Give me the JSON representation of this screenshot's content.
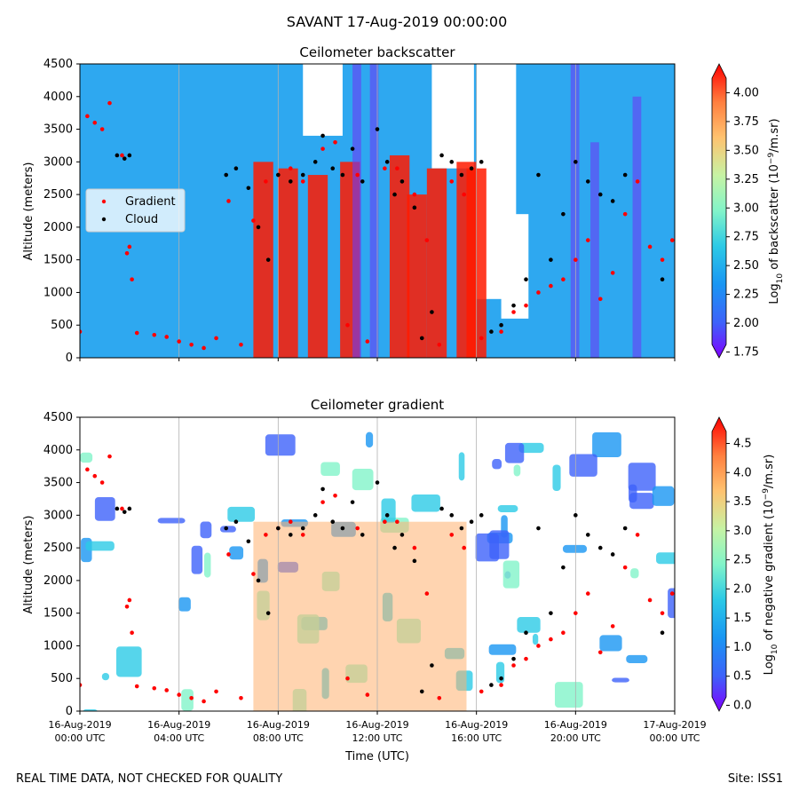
{
  "suptitle": "SAVANT 17-Aug-2019 00:00:00",
  "footer_left": "REAL TIME DATA, NOT CHECKED FOR QUALITY",
  "footer_right": "Site: ISS1",
  "colors": {
    "gradient_marker": "#ff0000",
    "cloud_marker": "#000000",
    "colormap": [
      "#7f00ff",
      "#3d62fa",
      "#1996f3",
      "#2ccae6",
      "#82f4c9",
      "#c6f3a4",
      "#ffc26f",
      "#ff7f3f",
      "#ff3d1f",
      "#ff0000"
    ]
  },
  "chart_data": [
    {
      "type": "heatmap",
      "title": "Ceilometer backscatter",
      "xlabel": "",
      "ylabel": "Altitude (meters)",
      "x_range": [
        "16-Aug-2019 00:00 UTC",
        "17-Aug-2019 00:00 UTC"
      ],
      "ylim": [
        0,
        4500
      ],
      "yticks": [
        0,
        500,
        1000,
        1500,
        2000,
        2500,
        3000,
        3500,
        4000,
        4500
      ],
      "grid": "vertical at 4-hour ticks",
      "colorbar": {
        "label": "Log10 of backscatter (10^-9/m.sr)",
        "range": [
          1.7,
          4.25
        ],
        "ticks": [
          "1.75",
          "2.00",
          "2.25",
          "2.50",
          "2.75",
          "3.00",
          "3.25",
          "3.50",
          "3.75",
          "4.00"
        ]
      },
      "legend": {
        "location": "left",
        "entries": [
          "Gradient",
          "Cloud"
        ]
      },
      "overlay_series": [
        {
          "name": "Gradient",
          "marker": "red dots",
          "points": [
            [
              0.0,
              400
            ],
            [
              0.3,
              3700
            ],
            [
              0.6,
              3600
            ],
            [
              0.9,
              3500
            ],
            [
              1.2,
              3900
            ],
            [
              1.7,
              3100
            ],
            [
              1.9,
              1600
            ],
            [
              2.0,
              1700
            ],
            [
              2.1,
              1200
            ],
            [
              2.3,
              380
            ],
            [
              3.0,
              350
            ],
            [
              3.5,
              320
            ],
            [
              4.0,
              250
            ],
            [
              4.5,
              200
            ],
            [
              5.0,
              150
            ],
            [
              5.5,
              300
            ],
            [
              6.0,
              2400
            ],
            [
              6.5,
              200
            ],
            [
              7.0,
              2100
            ],
            [
              7.5,
              2700
            ],
            [
              8.0,
              2800
            ],
            [
              8.5,
              2900
            ],
            [
              9.0,
              2700
            ],
            [
              9.8,
              3200
            ],
            [
              10.3,
              3300
            ],
            [
              10.8,
              500
            ],
            [
              11.2,
              2800
            ],
            [
              11.6,
              250
            ],
            [
              12.3,
              2900
            ],
            [
              12.8,
              2900
            ],
            [
              13.5,
              2500
            ],
            [
              14.0,
              1800
            ],
            [
              14.5,
              200
            ],
            [
              15.0,
              2700
            ],
            [
              15.5,
              2500
            ],
            [
              16.2,
              300
            ],
            [
              17.0,
              400
            ],
            [
              17.5,
              700
            ],
            [
              18.0,
              800
            ],
            [
              18.5,
              1000
            ],
            [
              19.0,
              1100
            ],
            [
              19.5,
              1200
            ],
            [
              20.0,
              1500
            ],
            [
              20.5,
              1800
            ],
            [
              21.0,
              900
            ],
            [
              21.5,
              1300
            ],
            [
              22.0,
              2200
            ],
            [
              22.5,
              2700
            ],
            [
              23.0,
              1700
            ],
            [
              23.5,
              1500
            ],
            [
              23.9,
              1800
            ]
          ]
        },
        {
          "name": "Cloud",
          "marker": "black dots",
          "points": [
            [
              1.5,
              3100
            ],
            [
              1.8,
              3050
            ],
            [
              2.0,
              3100
            ],
            [
              5.9,
              2800
            ],
            [
              6.3,
              2900
            ],
            [
              6.8,
              2600
            ],
            [
              7.2,
              2000
            ],
            [
              7.6,
              1500
            ],
            [
              8.0,
              2800
            ],
            [
              8.5,
              2700
            ],
            [
              9.0,
              2800
            ],
            [
              9.5,
              3000
            ],
            [
              9.8,
              3400
            ],
            [
              10.2,
              2900
            ],
            [
              10.6,
              2800
            ],
            [
              11.0,
              3200
            ],
            [
              11.4,
              2700
            ],
            [
              12.0,
              3500
            ],
            [
              12.4,
              3000
            ],
            [
              12.7,
              2500
            ],
            [
              13.0,
              2700
            ],
            [
              13.5,
              2300
            ],
            [
              13.8,
              300
            ],
            [
              14.2,
              700
            ],
            [
              14.6,
              3100
            ],
            [
              15.0,
              3000
            ],
            [
              15.4,
              2800
            ],
            [
              15.8,
              2900
            ],
            [
              16.2,
              3000
            ],
            [
              16.6,
              400
            ],
            [
              17.0,
              500
            ],
            [
              17.5,
              800
            ],
            [
              18.0,
              1200
            ],
            [
              18.5,
              2800
            ],
            [
              19.0,
              1500
            ],
            [
              19.5,
              2200
            ],
            [
              20.0,
              3000
            ],
            [
              20.5,
              2700
            ],
            [
              21.0,
              2500
            ],
            [
              21.5,
              2400
            ],
            [
              22.0,
              2800
            ],
            [
              23.5,
              1200
            ]
          ]
        }
      ]
    },
    {
      "type": "heatmap",
      "title": "Ceilometer gradient",
      "xlabel": "Time (UTC)",
      "ylabel": "Altitude (meters)",
      "x_range": [
        "16-Aug-2019 00:00 UTC",
        "17-Aug-2019 00:00 UTC"
      ],
      "xticks": [
        {
          "hour": 0,
          "l1": "16-Aug-2019",
          "l2": "00:00 UTC"
        },
        {
          "hour": 4,
          "l1": "16-Aug-2019",
          "l2": "04:00 UTC"
        },
        {
          "hour": 8,
          "l1": "16-Aug-2019",
          "l2": "08:00 UTC"
        },
        {
          "hour": 12,
          "l1": "16-Aug-2019",
          "l2": "12:00 UTC"
        },
        {
          "hour": 16,
          "l1": "16-Aug-2019",
          "l2": "16:00 UTC"
        },
        {
          "hour": 20,
          "l1": "16-Aug-2019",
          "l2": "20:00 UTC"
        },
        {
          "hour": 24,
          "l1": "17-Aug-2019",
          "l2": "00:00 UTC"
        }
      ],
      "ylim": [
        0,
        4500
      ],
      "yticks": [
        0,
        500,
        1000,
        1500,
        2000,
        2500,
        3000,
        3500,
        4000,
        4500
      ],
      "grid": "vertical at 4-hour ticks",
      "colorbar": {
        "label": "Log10 of negative gradient (10^-9/m.sr)",
        "range": [
          -0.1,
          4.95
        ],
        "ticks": [
          "0.0",
          "0.5",
          "1.0",
          "1.5",
          "2.0",
          "2.5",
          "3.0",
          "3.5",
          "4.0",
          "4.5"
        ]
      },
      "overlay_series": [
        {
          "name": "Gradient",
          "marker": "red dots",
          "same_as_panel": 1
        },
        {
          "name": "Cloud",
          "marker": "black dots",
          "same_as_panel": 1
        }
      ]
    }
  ]
}
